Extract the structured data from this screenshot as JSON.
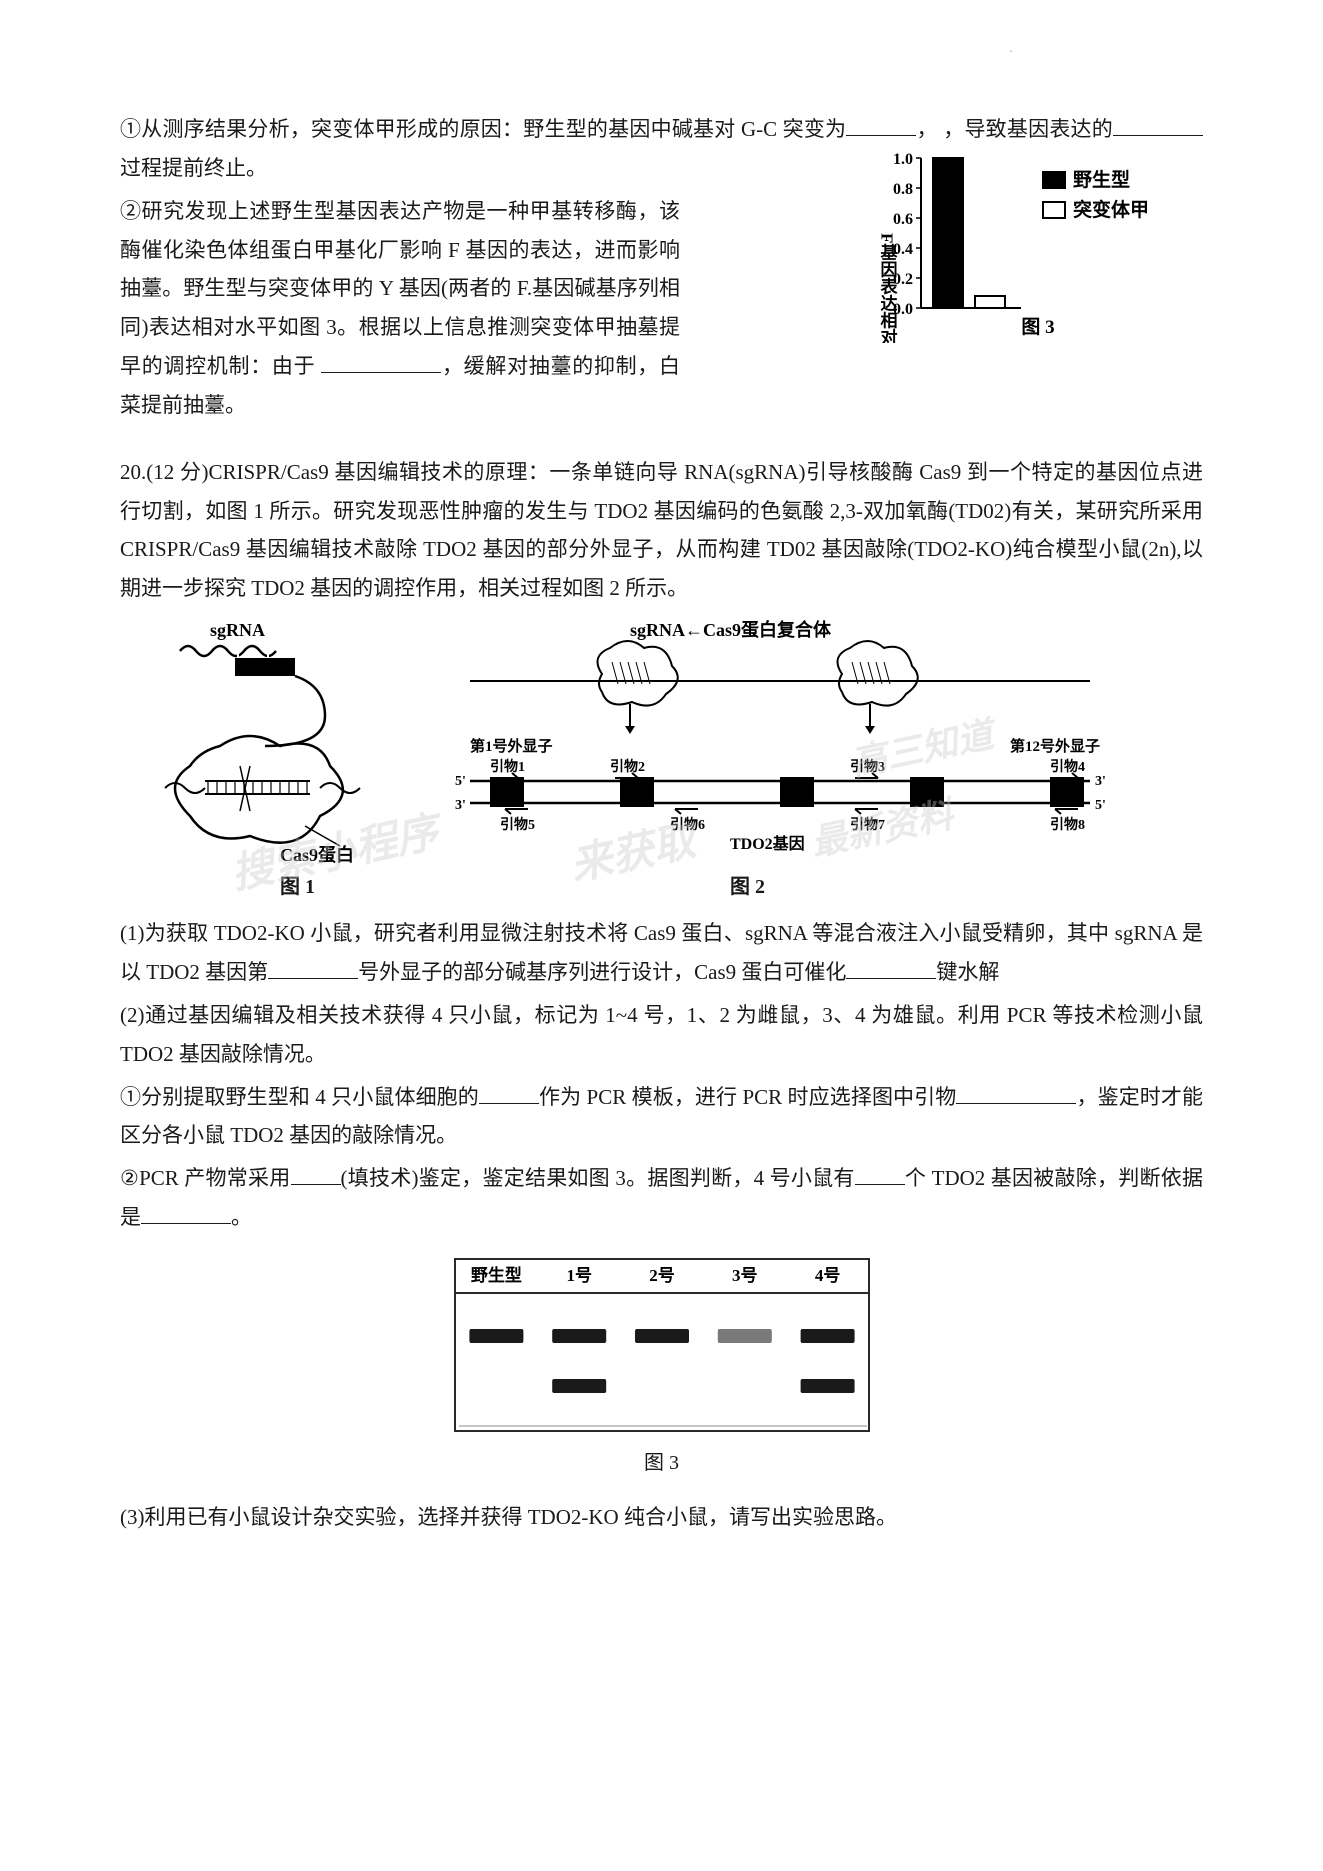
{
  "section1": {
    "para1_pre": "①从测序结果分析，突变体甲形成的原因：野生型的基因中碱基对 G-C 突变为",
    "para1_post": "，导致基因表达的",
    "para1_end": "过程提前终止。",
    "para2_a": "②研究发现上述野生型基因表达产物是一种甲基转移酶，该酶催化染色体组蛋白甲基化厂影响 F 基因的表达，进而影响抽薹。野生型与突变体甲的 Y 基因(两者的 F.基因碱基序列相同)表达相对水平如图 3。根据以上信息推测突变体甲抽墓提早的调控机制：由于",
    "para2_b": "，缓解对抽薹的抑制，白菜提前抽薹。"
  },
  "chart3_top": {
    "type": "bar",
    "y_label": "F基因表达相对水平",
    "y_ticks": [
      "0.0",
      "0.2",
      "0.4",
      "0.6",
      "0.8",
      "1.0"
    ],
    "legend": [
      "野生型",
      "突变体甲"
    ],
    "values": [
      1.0,
      0.08
    ],
    "bar_colors": [
      "#000000",
      "#ffffff"
    ],
    "bar_border": "#000000",
    "axis_color": "#000000",
    "font_size": 19,
    "label": "图 3"
  },
  "q20": {
    "intro_a": "20.(12 分)CRISPR/Cas9 基因编辑技术的原理：一条单链向导 RNA(sgRNA)引导核酸酶 Cas9 到一个特定的基因位点进行切割，如图 1 所示。研究发现恶性肿瘤的发生与 TDO2 基因编码的色氨酸 2,3-双加氧酶(TD02)有关，某研究所采用 CRISPR/Cas9 基因编辑技术敲除 TDO2 基因的部分外显子，从而构建 TD02 基因敲除(TDO2-KO)纯合模型小鼠(2n),以期进一步探究 TDO2 基因的调控作用，相关过程如图 2 所示。",
    "fig1_labels": {
      "sgRNA": "sgRNA",
      "cas9": "Cas9蛋白",
      "fig1": "图 1"
    },
    "fig2_labels": {
      "complex": "sgRNA←Cas9蛋白复合体",
      "exon1": "第1号外显子",
      "exon12": "第12号外显子",
      "p1": "引物1",
      "p2": "引物2",
      "p3": "引物3",
      "p4": "引物4",
      "p5": "引物5",
      "p6": "引物6",
      "p7": "引物7",
      "p8": "引物8",
      "five": "5'",
      "three": "3'",
      "gene": "TDO2基因",
      "fig2": "图 2"
    },
    "watermarks": {
      "w1": "搜索小程序",
      "w2": "来获取",
      "w3": "高三知道",
      "w4": "最新资料"
    },
    "sub1_a": "(1)为获取 TDO2-KO 小鼠，研究者利用显微注射技术将 Cas9 蛋白、sgRNA 等混合液注入小鼠受精卵，其中 sgRNA 是以 TDO2 基因第",
    "sub1_b": "号外显子的部分碱基序列进行设计，Cas9 蛋白可催化",
    "sub1_c": "键水解",
    "sub2_a": "(2)通过基因编辑及相关技术获得 4 只小鼠，标记为 1~4 号，1、2 为雌鼠，3、4 为雄鼠。利用 PCR 等技术检测小鼠 TDO2 基因敲除情况。",
    "sub21_a": "①分别提取野生型和 4 只小鼠体细胞的",
    "sub21_b": "作为 PCR 模板，进行 PCR 时应选择图中引物",
    "sub21_c": "，鉴定时才能区分各小鼠 TDO2 基因的敲除情况。",
    "sub22_a": "②PCR 产物常采用",
    "sub22_b": "(填技术)鉴定，鉴定结果如图 3。据图判断，4 号小鼠有",
    "sub22_c": "个 TDO2 基因被敲除，判断依据是",
    "sub22_d": "。",
    "sub3": "(3)利用已有小鼠设计杂交实验，选择并获得 TDO2-KO 纯合小鼠，请写出实验思路。"
  },
  "gel": {
    "lanes": [
      "野生型",
      "1号",
      "2号",
      "3号",
      "4号"
    ],
    "bands": [
      {
        "lane": 0,
        "pos": "upper",
        "present": true
      },
      {
        "lane": 1,
        "pos": "upper",
        "present": true
      },
      {
        "lane": 1,
        "pos": "lower",
        "present": true
      },
      {
        "lane": 2,
        "pos": "upper",
        "present": true
      },
      {
        "lane": 3,
        "pos": "upper",
        "present": true,
        "faint": true
      },
      {
        "lane": 4,
        "pos": "upper",
        "present": true
      },
      {
        "lane": 4,
        "pos": "lower",
        "present": true
      }
    ],
    "band_color": "#1a1a1a",
    "faint_color": "#7a7a7a",
    "border_color": "#2a2a2a",
    "label": "图 3"
  }
}
